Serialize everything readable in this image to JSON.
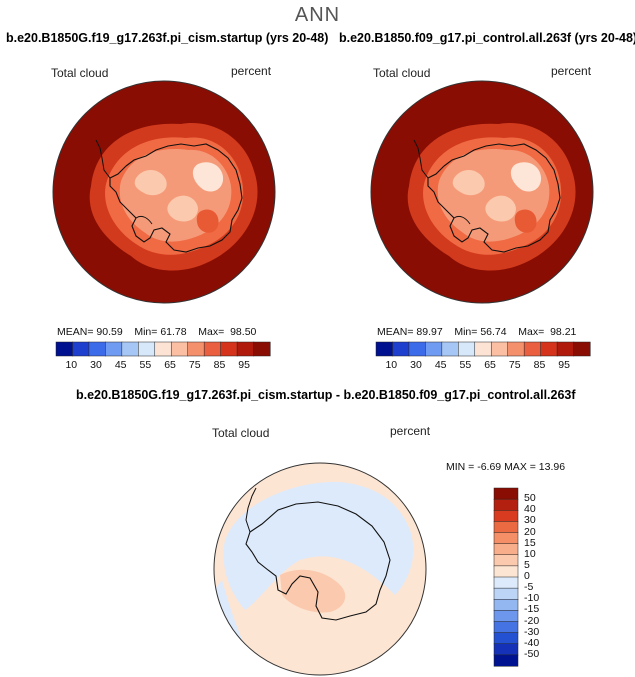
{
  "header": {
    "title": "ANN"
  },
  "panel_left": {
    "title": "b.e20.B1850G.f19_g17.263f.pi_cism.startup (yrs 20-48)",
    "field_label": "Total cloud",
    "units_label": "percent",
    "stats": {
      "mean_label": "MEAN=",
      "mean": "90.59",
      "min_label": "Min=",
      "min": "61.78",
      "max_label": "Max=",
      "max": "98.50"
    }
  },
  "panel_right": {
    "title": "b.e20.B1850.f09_g17.pi_control.all.263f (yrs 20-48)",
    "field_label": "Total cloud",
    "units_label": "percent",
    "stats": {
      "mean_label": "MEAN=",
      "mean": "89.97",
      "min_label": "Min=",
      "min": "56.74",
      "max_label": "Max=",
      "max": "98.21"
    }
  },
  "abs_colorbar": {
    "ticks": [
      "10",
      "30",
      "45",
      "55",
      "65",
      "75",
      "85",
      "95"
    ],
    "colors": [
      "#00118f",
      "#1f3fcf",
      "#3c6bea",
      "#6f9bf2",
      "#a6c6f6",
      "#d8e8fb",
      "#fde3d4",
      "#fbbfa3",
      "#f4906c",
      "#ea5f3f",
      "#d5331b",
      "#b01a0c",
      "#8a0d03"
    ]
  },
  "panel_diff": {
    "title": "b.e20.B1850G.f19_g17.263f.pi_cism.startup - b.e20.B1850.f09_g17.pi_control.all.263f",
    "field_label": "Total cloud",
    "units_label": "percent",
    "stats_text": "MIN =   -6.69  MAX =   13.96"
  },
  "diff_colorbar": {
    "ticks": [
      "50",
      "40",
      "30",
      "20",
      "15",
      "10",
      "5",
      "0",
      "-5",
      "-10",
      "-15",
      "-20",
      "-30",
      "-40",
      "-50"
    ],
    "colors": [
      "#8a0d03",
      "#b3200f",
      "#d83b1f",
      "#ec6a42",
      "#f48f68",
      "#f8ae8b",
      "#fbc9ad",
      "#fde5d3",
      "#ddeafb",
      "#bcd5f7",
      "#93b7f1",
      "#6c97ec",
      "#4573e3",
      "#2450d2",
      "#1531b8",
      "#00128f"
    ]
  }
}
